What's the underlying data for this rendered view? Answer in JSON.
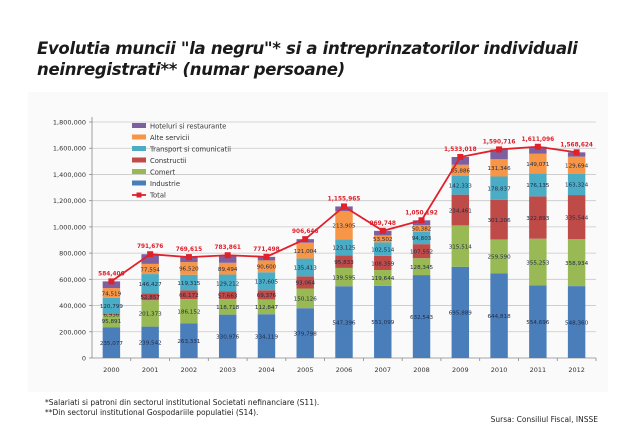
{
  "title_line1": "Evolutia muncii \"la negru\"* si a intreprinzatorilor individuali",
  "title_line2": "neinregistrati** (numar persoane)",
  "footnotes": [
    "*Salariati si patroni din sectorul institutional Societati nefinanciare (S11).",
    "**Din sectorul institutional Gospodariile populatiei (S14)."
  ],
  "source": "Sursa: Consiliul Fiscal, INSSE",
  "chart_data": {
    "type": "bar",
    "stacked": true,
    "title": "Evolutia muncii \"la negru\" si a intreprinzatorilor individuali neinregistrati (numar persoane)",
    "xlabel": "",
    "ylabel": "",
    "ylim": [
      0,
      1800000
    ],
    "yticks": [
      "0",
      "200,000",
      "400,000",
      "600,000",
      "800,000",
      "1,000,000",
      "1,200,000",
      "1,400,000",
      "1,600,000",
      "1,800,000"
    ],
    "grid": true,
    "legend_position": "top-left",
    "categories": [
      "2000",
      "2001",
      "2002",
      "2003",
      "2004",
      "2005",
      "2006",
      "2007",
      "2008",
      "2009",
      "2010",
      "2011",
      "2012"
    ],
    "series": [
      {
        "name": "Industrie",
        "color": "#4a7ebb",
        "labeled": true,
        "values": [
          235077,
          239542,
          263331,
          330976,
          334119,
          379798,
          547396,
          551099,
          632543,
          695889,
          644818,
          554696,
          548360
        ]
      },
      {
        "name": "Comert",
        "color": "#98b954",
        "labeled": true,
        "values": [
          95891,
          201373,
          186152,
          118718,
          112847,
          150126,
          139595,
          119644,
          128345,
          315514,
          259590,
          355253,
          358934
        ]
      },
      {
        "name": "Constructii",
        "color": "#be4b48",
        "labeled": true,
        "values": [
          6936,
          52857,
          66172,
          57663,
          69376,
          93064,
          95833,
          108359,
          107552,
          234461,
          301206,
          322893,
          335544
        ]
      },
      {
        "name": "Transport si comunicatii",
        "color": "#4bacc6",
        "labeled": true,
        "values": [
          120799,
          146427,
          119315,
          129212,
          137605,
          135413,
          123125,
          102514,
          94803,
          142333,
          178837,
          176135,
          163324
        ]
      },
      {
        "name": "Alte servicii",
        "color": "#f79646",
        "labeled": true,
        "values": [
          74519,
          77554,
          96520,
          89494,
          90600,
          121004,
          213905,
          53502,
          50382,
          85886,
          131346,
          149071,
          129694
        ]
      },
      {
        "name": "Hoteluri si restaurante",
        "color": "#7d60a0",
        "labeled": false,
        "values": [
          51184,
          73923,
          38125,
          57798,
          26951,
          27241,
          36111,
          34630,
          36567,
          58935,
          74919,
          53048,
          32768
        ]
      }
    ],
    "line": {
      "name": "Total",
      "color": "#e0202b",
      "values": [
        584406,
        791676,
        769615,
        783861,
        771498,
        906646,
        1155965,
        969748,
        1050192,
        1533018,
        1590716,
        1611096,
        1568624
      ]
    },
    "legend_order": [
      "Hoteluri si restaurante",
      "Alte servicii",
      "Transport si comunicatii",
      "Constructii",
      "Comert",
      "Industrie",
      "Total"
    ]
  }
}
